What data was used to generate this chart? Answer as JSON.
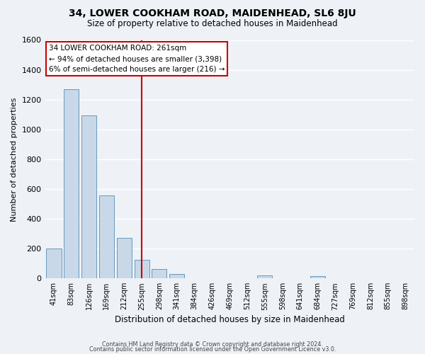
{
  "title": "34, LOWER COOKHAM ROAD, MAIDENHEAD, SL6 8JU",
  "subtitle": "Size of property relative to detached houses in Maidenhead",
  "xlabel": "Distribution of detached houses by size in Maidenhead",
  "ylabel": "Number of detached properties",
  "bar_color": "#c8d8e8",
  "bar_edge_color": "#6699bb",
  "categories": [
    "41sqm",
    "83sqm",
    "126sqm",
    "169sqm",
    "212sqm",
    "255sqm",
    "298sqm",
    "341sqm",
    "384sqm",
    "426sqm",
    "469sqm",
    "512sqm",
    "555sqm",
    "598sqm",
    "641sqm",
    "684sqm",
    "727sqm",
    "769sqm",
    "812sqm",
    "855sqm",
    "898sqm"
  ],
  "values": [
    200,
    1270,
    1095,
    555,
    270,
    125,
    65,
    30,
    0,
    0,
    0,
    0,
    20,
    0,
    0,
    15,
    0,
    0,
    0,
    0,
    0
  ],
  "ylim": [
    0,
    1600
  ],
  "yticks": [
    0,
    200,
    400,
    600,
    800,
    1000,
    1200,
    1400,
    1600
  ],
  "vline_x_index": 5,
  "vline_color": "#cc0000",
  "annotation_title": "34 LOWER COOKHAM ROAD: 261sqm",
  "annotation_line1": "← 94% of detached houses are smaller (3,398)",
  "annotation_line2": "6% of semi-detached houses are larger (216) →",
  "annotation_box_color": "#ffffff",
  "annotation_box_edge": "#cc0000",
  "footer1": "Contains HM Land Registry data © Crown copyright and database right 2024.",
  "footer2": "Contains public sector information licensed under the Open Government Licence v3.0.",
  "background_color": "#eef2f7",
  "grid_color": "#ffffff"
}
